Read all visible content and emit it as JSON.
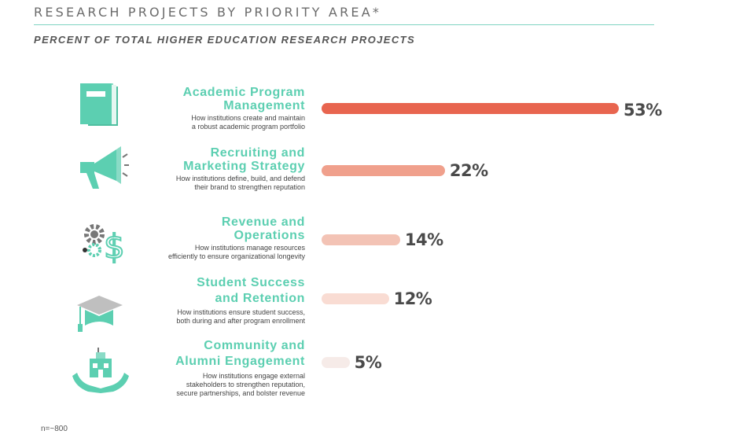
{
  "title": "RESEARCH PROJECTS BY PRIORITY AREA*",
  "subtitle": "PERCENT OF TOTAL HIGHER EDUCATION RESEARCH PROJECTS",
  "footnote": "n=~800",
  "colors": {
    "accent": "#5ccfb1",
    "bar_1": "#e8654f",
    "bar_2": "#f0a08c",
    "bar_3": "#f3c3b5",
    "bar_4": "#f9dcd3",
    "bar_5": "#f6ebe8"
  },
  "chart_data": {
    "type": "bar",
    "orientation": "horizontal",
    "unit": "%",
    "xlim": [
      0,
      53
    ],
    "categories": [
      {
        "title": "Academic Program Management",
        "title_lines": [
          "Academic Program",
          "Management"
        ],
        "description": "How institutions create and maintain a robust academic program portfolio",
        "desc_lines": [
          "How institutions create and maintain",
          "a robust academic program portfolio"
        ],
        "value": 53,
        "label": "53%",
        "icon": "book-icon"
      },
      {
        "title": "Recruiting and Marketing Strategy",
        "title_lines": [
          "Recruiting and",
          "Marketing Strategy"
        ],
        "description": "How institutions define, build, and defend their brand to strengthen reputation",
        "desc_lines": [
          "How institutions define, build, and defend",
          "their brand to strengthen reputation"
        ],
        "value": 22,
        "label": "22%",
        "icon": "megaphone-icon"
      },
      {
        "title": "Revenue and Operations",
        "title_lines": [
          "Revenue and",
          "Operations"
        ],
        "description": "How institutions manage resources efficiently to ensure organizational longevity",
        "desc_lines": [
          "How institutions manage resources",
          "efficiently to ensure organizational longevity"
        ],
        "value": 14,
        "label": "14%",
        "icon": "gears-dollar-icon"
      },
      {
        "title": "Student Success and Retention",
        "title_lines": [
          "Student Success",
          "and Retention"
        ],
        "description": "How institutions ensure student success, both during and after program enrollment",
        "desc_lines": [
          "How institutions ensure student success,",
          "both during and after program enrollment"
        ],
        "value": 12,
        "label": "12%",
        "icon": "graduation-cap-icon"
      },
      {
        "title": "Community and Alumni Engagement",
        "title_lines": [
          "Community and",
          "Alumni Engagement"
        ],
        "description": "How institutions engage external stakeholders to strengthen reputation, secure partnerships, and bolster revenue",
        "desc_lines": [
          "How institutions engage external",
          "stakeholders to strengthen reputation,",
          "secure partnerships, and bolster revenue"
        ],
        "value": 5,
        "label": "5%",
        "icon": "hands-building-icon"
      }
    ]
  }
}
